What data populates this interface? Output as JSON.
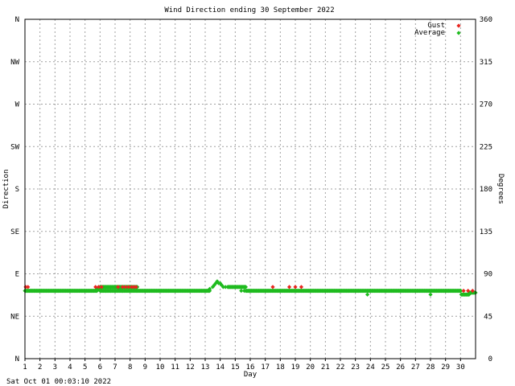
{
  "chart_data": {
    "type": "scatter",
    "title": "Wind Direction ending 30 September 2022",
    "xlabel": "Day",
    "ylabel_left": "Direction",
    "ylabel_right": "Degrees",
    "footer": "Sat Oct 01 00:03:10 2022",
    "xlim": [
      1,
      31
    ],
    "ylim": [
      0,
      360
    ],
    "x_ticks": [
      "1",
      "2",
      "3",
      "4",
      "5",
      "6",
      "7",
      "8",
      "9",
      "10",
      "11",
      "12",
      "13",
      "14",
      "15",
      "16",
      "17",
      "18",
      "19",
      "20",
      "21",
      "22",
      "23",
      "24",
      "25",
      "26",
      "27",
      "28",
      "29",
      "30"
    ],
    "y_ticks_left": [
      {
        "value": 0,
        "label": "N"
      },
      {
        "value": 45,
        "label": "NE"
      },
      {
        "value": 90,
        "label": "E"
      },
      {
        "value": 135,
        "label": "SE"
      },
      {
        "value": 180,
        "label": "S"
      },
      {
        "value": 225,
        "label": "SW"
      },
      {
        "value": 270,
        "label": "W"
      },
      {
        "value": 315,
        "label": "NW"
      },
      {
        "value": 360,
        "label": "N"
      }
    ],
    "y_ticks_right": [
      0,
      45,
      90,
      135,
      180,
      225,
      270,
      315,
      360
    ],
    "grid": true,
    "legend_position": "top-right",
    "colors": {
      "gust": "#e8251f",
      "average": "#1fbb1f",
      "grid": "#a0a0a0",
      "axis": "#000000"
    },
    "series": [
      {
        "name": "Gust",
        "points": [
          [
            1.05,
            76
          ],
          [
            1.2,
            76
          ],
          [
            5.7,
            76
          ],
          [
            5.9,
            76
          ],
          [
            6.1,
            76
          ],
          [
            7.2,
            76
          ],
          [
            7.5,
            76
          ],
          [
            7.7,
            76
          ],
          [
            7.9,
            76
          ],
          [
            8.1,
            76
          ],
          [
            8.25,
            76
          ],
          [
            8.4,
            76
          ],
          [
            17.5,
            76
          ],
          [
            18.6,
            76
          ],
          [
            19.0,
            76
          ],
          [
            19.4,
            76
          ],
          [
            30.2,
            72
          ],
          [
            30.5,
            72
          ],
          [
            30.8,
            72
          ]
        ]
      },
      {
        "name": "Average",
        "runs": [
          {
            "from": 1.0,
            "to": 5.8,
            "step": 0.04,
            "value": 72
          },
          {
            "from": 5.8,
            "to": 6.0,
            "step": 0.05,
            "value": 74
          },
          {
            "from": 6.0,
            "to": 8.5,
            "step": 0.04,
            "value": 76
          },
          {
            "from": 6.0,
            "to": 8.5,
            "step": 0.04,
            "value": 72
          },
          {
            "from": 8.5,
            "to": 13.3,
            "step": 0.04,
            "value": 72
          },
          {
            "from": 14.5,
            "to": 15.7,
            "step": 0.04,
            "value": 76
          },
          {
            "from": 15.7,
            "to": 30.05,
            "step": 0.04,
            "value": 72
          },
          {
            "from": 30.05,
            "to": 30.6,
            "step": 0.04,
            "value": 68
          },
          {
            "from": 30.6,
            "to": 31.0,
            "step": 0.04,
            "value": 70
          }
        ],
        "points": [
          [
            6.4,
            72
          ],
          [
            6.7,
            72
          ],
          [
            7.5,
            72
          ],
          [
            7.3,
            74
          ],
          [
            13.3,
            74
          ],
          [
            13.5,
            76
          ],
          [
            13.6,
            78
          ],
          [
            13.7,
            80
          ],
          [
            13.8,
            82
          ],
          [
            13.9,
            80
          ],
          [
            14.0,
            80
          ],
          [
            14.1,
            78
          ],
          [
            14.2,
            76
          ],
          [
            14.35,
            76
          ],
          [
            15.4,
            72
          ],
          [
            15.6,
            72
          ],
          [
            23.8,
            68
          ],
          [
            28.0,
            68
          ]
        ]
      }
    ]
  }
}
